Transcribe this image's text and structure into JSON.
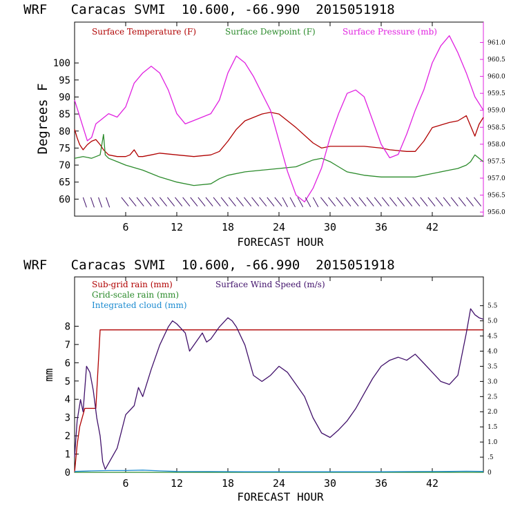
{
  "chart_data": [
    {
      "type": "line",
      "title": "WRF   Caracas SVMI  10.600, -66.990  2015051918",
      "xlabel": "FORECAST HOUR",
      "ylabel": "Degrees F",
      "xlim": [
        0,
        48
      ],
      "ylim": [
        55,
        112
      ],
      "x_ticks": [
        6,
        12,
        18,
        24,
        30,
        36,
        42
      ],
      "y_ticks": [
        60,
        65,
        70,
        75,
        80,
        85,
        90,
        95,
        100
      ],
      "y2_ticks": [
        "956.0",
        "956.5",
        "957.0",
        "957.5",
        "958.0",
        "958.5",
        "959.0",
        "959.5",
        "960.0",
        "960.5",
        "961.0"
      ],
      "y2lim": [
        955.88,
        961.6
      ],
      "colors": {
        "temperature": "#b00000",
        "dewpoint": "#2a8a2a",
        "pressure": "#e020e0"
      },
      "legend": [
        "Surface Temperature (F)",
        "Surface Dewpoint (F)",
        "Surface Pressure (mb)"
      ],
      "series": [
        {
          "name": "Surface Temperature (F)",
          "axis": "left",
          "x": [
            0,
            0.3,
            0.6,
            1,
            1.5,
            2,
            2.5,
            3,
            3.4,
            4,
            5,
            6,
            6.5,
            7,
            7.5,
            8,
            9,
            10,
            12,
            14,
            16,
            17,
            18,
            19,
            20,
            22,
            23,
            24,
            26,
            28,
            29,
            30,
            32,
            34,
            36,
            37,
            39,
            40,
            41,
            42,
            44,
            45,
            46,
            47,
            47.5,
            48
          ],
          "y": [
            80.5,
            78,
            76,
            74.5,
            76,
            77,
            77.5,
            76,
            74.5,
            73,
            72.5,
            72.5,
            73,
            74.5,
            72.5,
            72.5,
            73,
            73.5,
            73,
            72.5,
            73,
            74,
            77,
            80.5,
            83,
            85,
            85.5,
            85,
            81,
            76.5,
            75,
            75.5,
            75.5,
            75.5,
            75,
            74.5,
            74,
            74,
            77,
            81,
            82.5,
            83,
            84.5,
            78.5,
            82,
            84
          ]
        },
        {
          "name": "Surface Dewpoint (F)",
          "axis": "left",
          "x": [
            0,
            1,
            2,
            3,
            3.4,
            3.6,
            4,
            5,
            6,
            8,
            10,
            12,
            14,
            16,
            17,
            18,
            20,
            22,
            24,
            26,
            28,
            29,
            30,
            31,
            32,
            34,
            36,
            38,
            40,
            42,
            44,
            45,
            46,
            46.5,
            47,
            47.5,
            48
          ],
          "y": [
            72,
            72.5,
            72,
            73,
            79,
            73,
            72,
            71,
            70,
            68.5,
            66.5,
            65,
            64,
            64.5,
            66,
            67,
            68,
            68.5,
            69,
            69.5,
            71.5,
            72,
            71,
            69.5,
            68,
            67,
            66.5,
            66.5,
            66.5,
            67.5,
            68.5,
            69,
            70,
            71,
            73,
            72,
            71
          ]
        },
        {
          "name": "Surface Pressure (mb)",
          "axis": "right",
          "x": [
            0,
            0.5,
            1,
            1.5,
            2,
            2.5,
            3,
            4,
            5,
            6,
            7,
            8,
            9,
            10,
            11,
            12,
            13,
            14,
            16,
            17,
            18,
            19,
            20,
            21,
            22,
            23,
            24,
            25,
            26,
            27,
            28,
            29,
            30,
            31,
            32,
            33,
            34,
            35,
            36,
            37,
            38,
            39,
            40,
            41,
            42,
            43,
            44,
            45,
            46,
            47,
            48
          ],
          "y": [
            959.3,
            958.9,
            958.5,
            958.1,
            958.2,
            958.6,
            958.7,
            958.9,
            958.8,
            959.1,
            959.8,
            960.1,
            960.3,
            960.1,
            959.6,
            958.9,
            958.6,
            958.7,
            958.9,
            959.3,
            960.1,
            960.6,
            960.4,
            960.0,
            959.5,
            959.0,
            958.1,
            957.2,
            956.5,
            956.3,
            956.7,
            957.3,
            958.2,
            958.9,
            959.5,
            959.6,
            959.4,
            958.7,
            958.0,
            957.6,
            957.7,
            958.3,
            959.0,
            959.6,
            960.4,
            960.9,
            961.2,
            960.7,
            960.1,
            959.4,
            959.0
          ]
        }
      ],
      "wind_barbs_note": "wind barbs drawn along the 60 F baseline"
    },
    {
      "type": "line",
      "title": "WRF   Caracas SVMI  10.600, -66.990  2015051918",
      "xlabel": "FORECAST HOUR",
      "ylabel": "mm",
      "xlim": [
        0,
        48
      ],
      "ylim": [
        0,
        10.7
      ],
      "x_ticks": [
        6,
        12,
        18,
        24,
        30,
        36,
        42
      ],
      "y_ticks": [
        0,
        1,
        2,
        3,
        4,
        5,
        6,
        7,
        8
      ],
      "y2_ticks": [
        "0",
        ".5",
        "1.0",
        "1.5",
        "2.0",
        "2.5",
        "3.0",
        "3.5",
        "4.0",
        "4.5",
        "5.0",
        "5.5"
      ],
      "y2lim": [
        0,
        6.45
      ],
      "colors": {
        "subgrid": "#b00000",
        "gridscale": "#2a8a2a",
        "cloud": "#1a8ad0",
        "wind": "#40106a"
      },
      "legend": [
        "Sub-grid rain (mm)",
        "Grid-scale rain (mm)",
        "Integrated cloud (mm)",
        "Surface Wind Speed (m/s)"
      ],
      "series": [
        {
          "name": "Sub-grid rain (mm)",
          "axis": "left",
          "x": [
            0,
            0.3,
            0.6,
            1.2,
            1.8,
            2.5,
            3,
            48
          ],
          "y": [
            0,
            1.5,
            2.5,
            3.5,
            3.5,
            3.5,
            7.8,
            7.8
          ]
        },
        {
          "name": "Grid-scale rain (mm)",
          "axis": "left",
          "x": [
            0,
            48
          ],
          "y": [
            0,
            0
          ]
        },
        {
          "name": "Integrated cloud (mm)",
          "axis": "left",
          "x": [
            0,
            2,
            4,
            6,
            8,
            10,
            12,
            16,
            20,
            24,
            28,
            32,
            36,
            40,
            44,
            46,
            48
          ],
          "y": [
            0.05,
            0.08,
            0.1,
            0.1,
            0.12,
            0.08,
            0.05,
            0.04,
            0.03,
            0.03,
            0.03,
            0.03,
            0.03,
            0.04,
            0.05,
            0.06,
            0.05
          ]
        },
        {
          "name": "Surface Wind Speed (m/s)",
          "axis": "right",
          "x": [
            0,
            0.3,
            0.7,
            1,
            1.4,
            1.8,
            2.2,
            2.6,
            3,
            3.3,
            3.6,
            4,
            5,
            6,
            7,
            7.5,
            8,
            9,
            10,
            11,
            11.5,
            12,
            13,
            13.5,
            14,
            15,
            15.5,
            16,
            17,
            18,
            18.5,
            19,
            20,
            21,
            22,
            23,
            24,
            25,
            26,
            27,
            28,
            29,
            30,
            31,
            32,
            33,
            34,
            35,
            36,
            37,
            38,
            39,
            40,
            41,
            42,
            43,
            44,
            45,
            46,
            46.5,
            47,
            47.5,
            48
          ],
          "y": [
            0.5,
            1.7,
            2.4,
            2.0,
            3.5,
            3.3,
            2.7,
            1.8,
            1.2,
            0.35,
            0.1,
            0.3,
            0.8,
            1.9,
            2.2,
            2.8,
            2.5,
            3.4,
            4.2,
            4.8,
            5.0,
            4.9,
            4.6,
            4.0,
            4.2,
            4.6,
            4.3,
            4.4,
            4.8,
            5.1,
            5.0,
            4.8,
            4.2,
            3.2,
            3.0,
            3.2,
            3.5,
            3.3,
            2.9,
            2.5,
            1.8,
            1.3,
            1.15,
            1.4,
            1.7,
            2.1,
            2.6,
            3.1,
            3.5,
            3.7,
            3.8,
            3.7,
            3.9,
            3.6,
            3.3,
            3.0,
            2.9,
            3.2,
            4.6,
            5.4,
            5.2,
            5.1,
            5.05
          ]
        }
      ]
    }
  ]
}
